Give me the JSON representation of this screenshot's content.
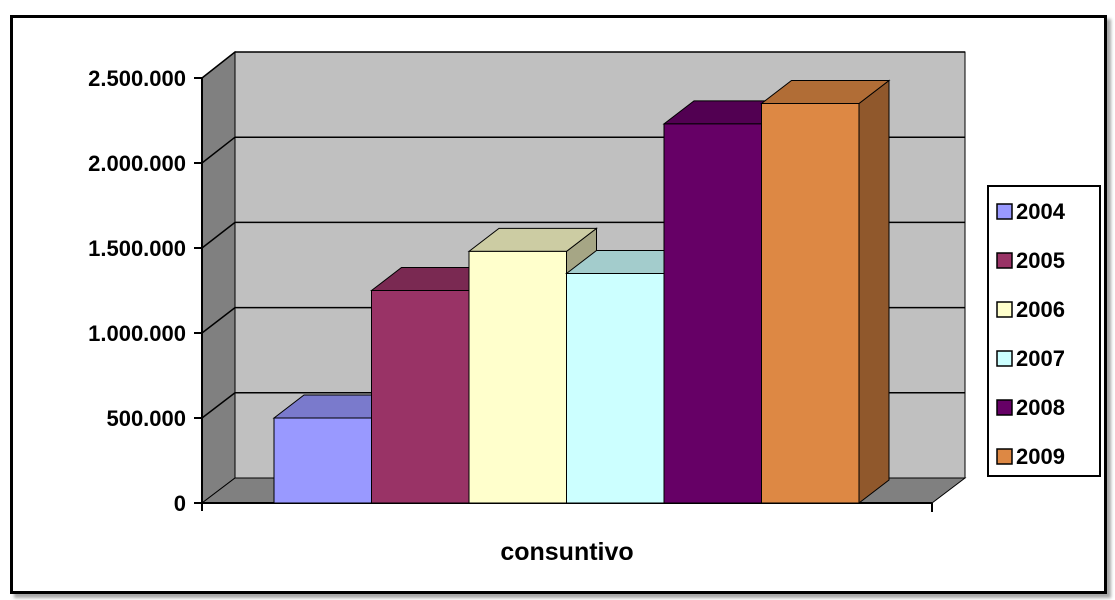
{
  "chart_data": {
    "type": "bar",
    "style": "3d-column",
    "categories": [
      "consuntivo"
    ],
    "series": [
      {
        "name": "2004",
        "values": [
          500000
        ],
        "color": "#9999FF"
      },
      {
        "name": "2005",
        "values": [
          1250000
        ],
        "color": "#993366"
      },
      {
        "name": "2006",
        "values": [
          1480000
        ],
        "color": "#FFFFCC"
      },
      {
        "name": "2007",
        "values": [
          1350000
        ],
        "color": "#CCFFFF"
      },
      {
        "name": "2008",
        "values": [
          2230000
        ],
        "color": "#660066"
      },
      {
        "name": "2009",
        "values": [
          2350000
        ],
        "color": "#DD8844"
      }
    ],
    "yticks": [
      "0",
      "500.000",
      "1.000.000",
      "1.500.000",
      "2.000.000",
      "2.500.000"
    ],
    "ylim": [
      0,
      2500000
    ],
    "grid": true,
    "legend_position": "right",
    "colors": {
      "wall": "#C0C0C0",
      "side_wall": "#808080",
      "floor": "#808080",
      "gridline": "#000000"
    }
  }
}
